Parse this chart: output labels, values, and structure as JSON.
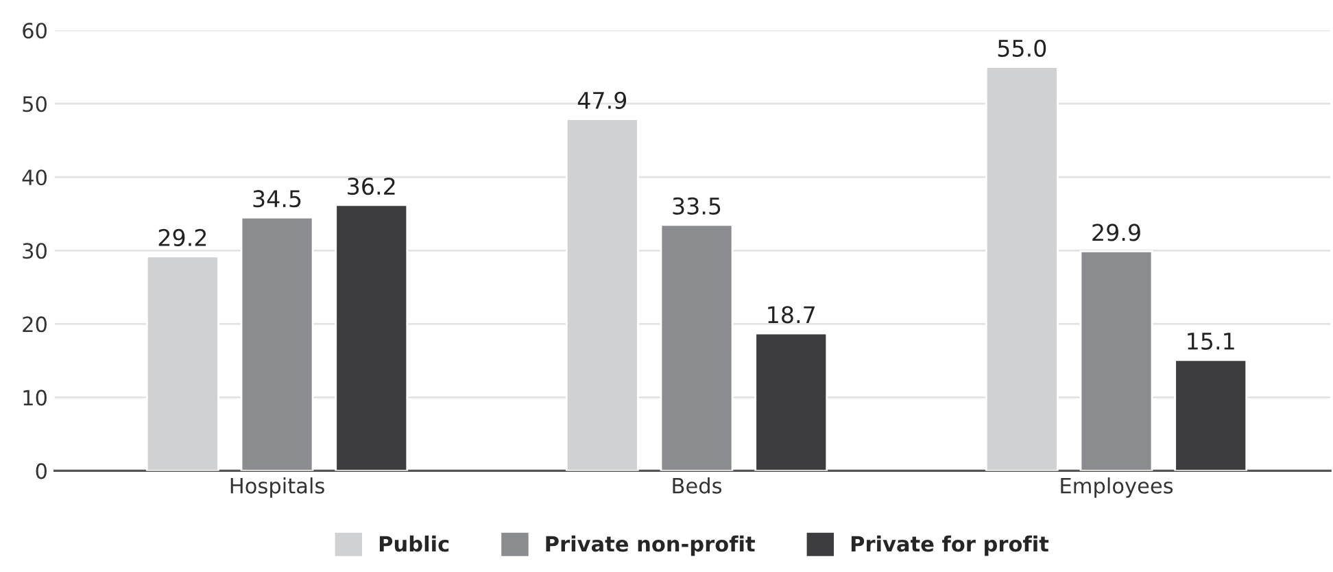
{
  "chart_data": {
    "type": "bar",
    "categories": [
      "Hospitals",
      "Beds",
      "Employees"
    ],
    "series": [
      {
        "name": "Public",
        "color": "#d0d1d3",
        "values": [
          29.2,
          47.9,
          55.0
        ],
        "value_labels": [
          "29.2",
          "47.9",
          "55.0"
        ]
      },
      {
        "name": "Private non-profit",
        "color": "#8b8c8f",
        "values": [
          34.5,
          33.5,
          29.9
        ],
        "value_labels": [
          "34.5",
          "33.5",
          "29.9"
        ]
      },
      {
        "name": "Private for profit",
        "color": "#3d3d3f",
        "values": [
          36.2,
          18.7,
          15.1
        ],
        "value_labels": [
          "36.2",
          "18.7",
          "15.1"
        ]
      }
    ],
    "ylim": [
      0,
      60
    ],
    "yticks": [
      0,
      10,
      20,
      30,
      40,
      50,
      60
    ],
    "grid": "y",
    "legend": "bottom"
  }
}
